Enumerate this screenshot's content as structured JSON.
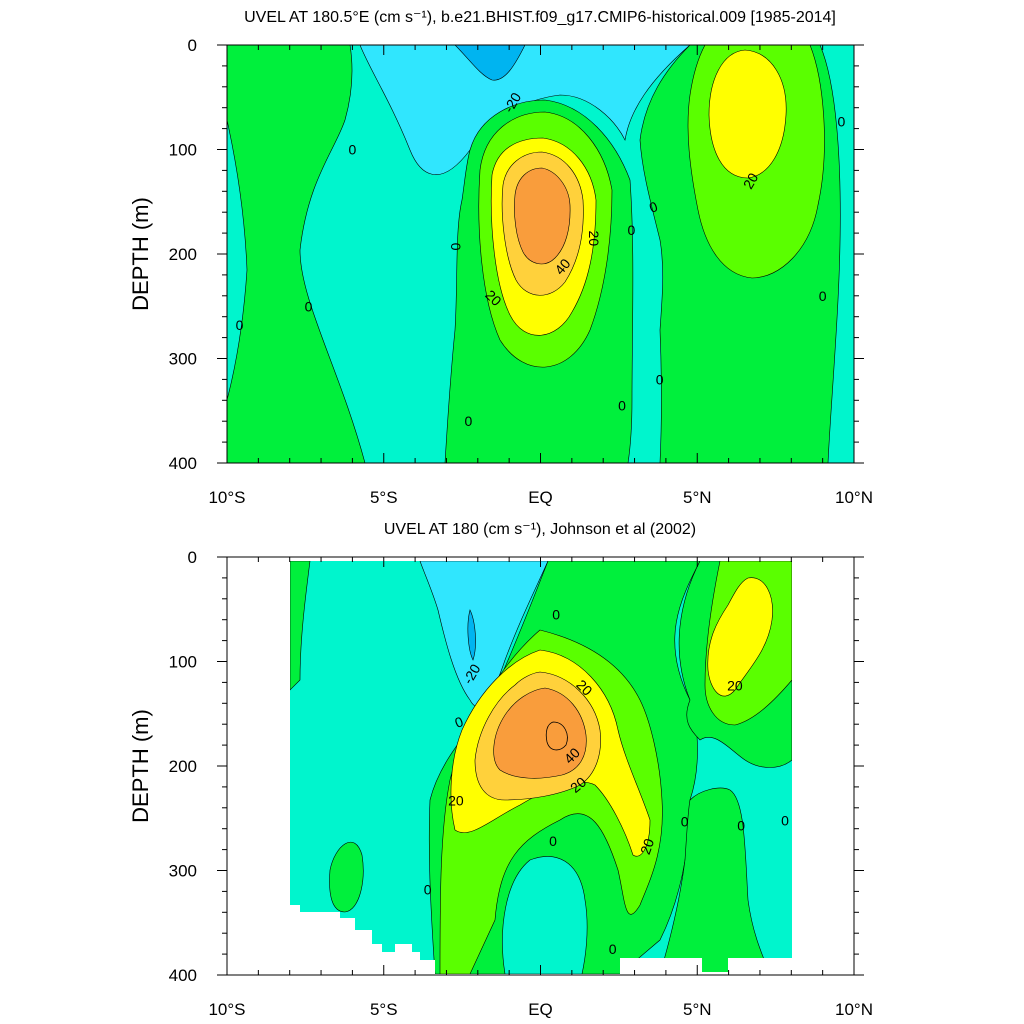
{
  "colors": {
    "lev_m40": "#00b4f0",
    "lev_m20": "#30e6fe",
    "lev_0": "#00f5cd",
    "lev_p0": "#00f03c",
    "lev_p10": "#5aff00",
    "lev_p20": "#ffff00",
    "lev_p30": "#ffd13b",
    "lev_p40": "#f99d3c",
    "contour_line": "#000000",
    "frame": "#000000"
  },
  "chart_data": [
    {
      "type": "heatmap",
      "title": "UVEL AT 180.5°E (cm s⁻¹), b.e21.BHIST.f09_g17.CMIP6-historical.009 [1985-2014]",
      "xlabel": "",
      "ylabel": "DEPTH (m)",
      "x_ticks": [
        "10°S",
        "5°S",
        "EQ",
        "5°N",
        "10°N"
      ],
      "y_ticks": [
        "0",
        "100",
        "200",
        "300",
        "400"
      ],
      "xlim_deg": [
        -10,
        10
      ],
      "ylim_m": [
        0,
        400
      ],
      "y_inverted": true,
      "contour_labels": [
        {
          "text": "-20",
          "lat": -0.9,
          "depth": 55,
          "rot": -60
        },
        {
          "text": "0",
          "lat": -6.0,
          "depth": 100,
          "rot": 0
        },
        {
          "text": "0",
          "lat": -2.7,
          "depth": 193,
          "rot": 90
        },
        {
          "text": "0",
          "lat": -7.4,
          "depth": 250,
          "rot": 0
        },
        {
          "text": "0",
          "lat": -9.6,
          "depth": 268,
          "rot": 0
        },
        {
          "text": "20",
          "lat": -1.5,
          "depth": 242,
          "rot": 45
        },
        {
          "text": "40",
          "lat": 0.7,
          "depth": 212,
          "rot": -50
        },
        {
          "text": "20",
          "lat": 1.7,
          "depth": 185,
          "rot": 90
        },
        {
          "text": "0",
          "lat": 2.9,
          "depth": 177,
          "rot": 0
        },
        {
          "text": "0",
          "lat": 3.6,
          "depth": 155,
          "rot": -20
        },
        {
          "text": "20",
          "lat": 6.7,
          "depth": 130,
          "rot": -60
        },
        {
          "text": "0",
          "lat": 9.6,
          "depth": 73,
          "rot": 0
        },
        {
          "text": "0",
          "lat": 9.0,
          "depth": 240,
          "rot": 0
        },
        {
          "text": "0",
          "lat": 3.8,
          "depth": 320,
          "rot": 0
        },
        {
          "text": "0",
          "lat": 2.6,
          "depth": 345,
          "rot": 0
        },
        {
          "text": "0",
          "lat": -2.3,
          "depth": 360,
          "rot": 0
        }
      ]
    },
    {
      "type": "heatmap",
      "title": "UVEL AT 180 (cm s⁻¹), Johnson et al (2002)",
      "xlabel": "",
      "ylabel": "DEPTH (m)",
      "x_ticks": [
        "10°S",
        "5°S",
        "EQ",
        "5°N",
        "10°N"
      ],
      "y_ticks": [
        "0",
        "100",
        "200",
        "300",
        "400"
      ],
      "xlim_deg": [
        -10,
        10
      ],
      "ylim_m": [
        0,
        400
      ],
      "y_inverted": true,
      "contour_labels": [
        {
          "text": "-20",
          "lat": -2.2,
          "depth": 112,
          "rot": -60
        },
        {
          "text": "0",
          "lat": 0.5,
          "depth": 55,
          "rot": 0
        },
        {
          "text": "0",
          "lat": -2.6,
          "depth": 158,
          "rot": -20
        },
        {
          "text": "20",
          "lat": 1.4,
          "depth": 125,
          "rot": 45
        },
        {
          "text": "20",
          "lat": -2.7,
          "depth": 233,
          "rot": 0
        },
        {
          "text": "40",
          "lat": 1.0,
          "depth": 190,
          "rot": -45
        },
        {
          "text": "20",
          "lat": 1.2,
          "depth": 218,
          "rot": -40
        },
        {
          "text": "0",
          "lat": 0.4,
          "depth": 272,
          "rot": 0
        },
        {
          "text": "20",
          "lat": 3.4,
          "depth": 277,
          "rot": -70
        },
        {
          "text": "0",
          "lat": 4.6,
          "depth": 253,
          "rot": 0
        },
        {
          "text": "0",
          "lat": 6.4,
          "depth": 257,
          "rot": 0
        },
        {
          "text": "0",
          "lat": 7.8,
          "depth": 252,
          "rot": 0
        },
        {
          "text": "20",
          "lat": 6.2,
          "depth": 123,
          "rot": 0
        },
        {
          "text": "0",
          "lat": -3.6,
          "depth": 318,
          "rot": 0
        },
        {
          "text": "0",
          "lat": 2.3,
          "depth": 375,
          "rot": 0
        }
      ]
    }
  ]
}
